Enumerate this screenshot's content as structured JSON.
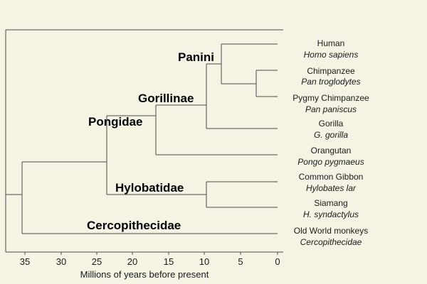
{
  "clades": {
    "panini": "Panini",
    "gorillinae": "Gorillinae",
    "pongidae": "Pongidae",
    "hylobatidae": "Hylobatidae",
    "cercopithecidae": "Cercopithecidae"
  },
  "taxa": [
    {
      "common": "Human",
      "scientific": "Homo sapiens"
    },
    {
      "common": "Chimpanzee",
      "scientific": "Pan troglodytes"
    },
    {
      "common": "Pygmy Chimpanzee",
      "scientific": "Pan paniscus"
    },
    {
      "common": "Gorilla",
      "scientific": "G. gorilla"
    },
    {
      "common": "Orangutan",
      "scientific": "Pongo pygmaeus"
    },
    {
      "common": "Common Gibbon",
      "scientific": "Hylobates lar"
    },
    {
      "common": "Siamang",
      "scientific": "H. syndactylus"
    },
    {
      "common": "Old World monkeys",
      "scientific": "Cercopithecidae"
    }
  ],
  "axis": {
    "title": "Millions of years before present",
    "ticks": [
      "35",
      "30",
      "25",
      "20",
      "15",
      "10",
      "5",
      "0"
    ]
  },
  "colors": {
    "background": "#f5f4e4",
    "lines": "#4d4d4d"
  }
}
